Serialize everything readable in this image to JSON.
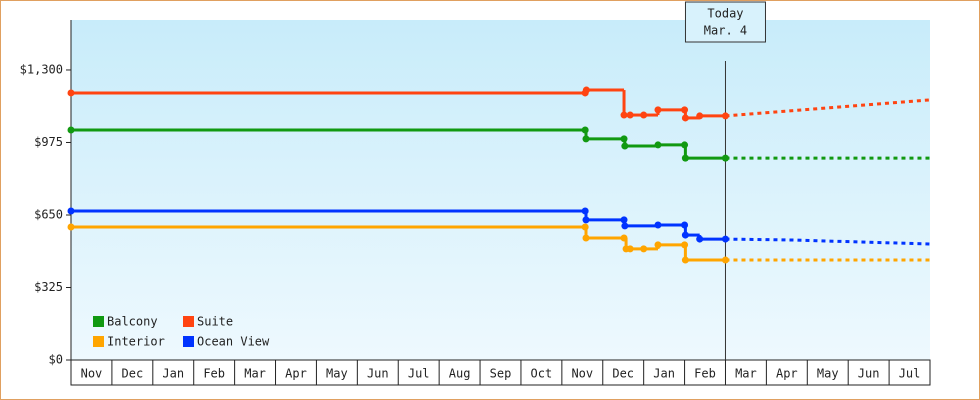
{
  "chart_data": {
    "type": "step-line",
    "x_labels": [
      "Nov",
      "Dec",
      "Jan",
      "Feb",
      "Mar",
      "Apr",
      "May",
      "Jun",
      "Jul",
      "Aug",
      "Sep",
      "Oct",
      "Nov",
      "Dec",
      "Jan",
      "Feb",
      "Mar",
      "Apr",
      "May",
      "Jun",
      "Jul"
    ],
    "xlim": [
      0,
      21
    ],
    "ylim": [
      0,
      1524
    ],
    "yticks": [
      {
        "value": 0,
        "label": "$0"
      },
      {
        "value": 325,
        "label": "$325"
      },
      {
        "value": 650,
        "label": "$650"
      },
      {
        "value": 975,
        "label": "$975"
      },
      {
        "value": 1300,
        "label": "$1,300"
      }
    ],
    "today": {
      "x": 16,
      "label": [
        "Today",
        "Mar. 4"
      ]
    },
    "series": [
      {
        "name": "Balcony",
        "color": "#119911",
        "x": [
          0,
          12.57,
          12.59,
          13.52,
          13.54,
          14.35,
          15.0,
          15.02,
          16.0
        ],
        "values": [
          1031,
          1031,
          991,
          991,
          959,
          964,
          964,
          905,
          905
        ],
        "forecast_x": [
          16,
          21
        ],
        "forecast_values": [
          905,
          905
        ]
      },
      {
        "name": "Suite",
        "color": "#ff4411",
        "x": [
          0,
          12.57,
          12.6,
          13.52,
          13.67,
          14.0,
          14.35,
          15.0,
          15.02,
          15.37,
          16.0
        ],
        "values": [
          1197,
          1197,
          1210,
          1098,
          1098,
          1098,
          1121,
          1121,
          1085,
          1094,
          1094
        ],
        "forecast_x": [
          16,
          21
        ],
        "forecast_values": [
          1094,
          1166
        ]
      },
      {
        "name": "Interior",
        "color": "#ffa500",
        "x": [
          0,
          12.57,
          12.59,
          13.52,
          13.57,
          13.67,
          14.0,
          14.35,
          15.0,
          15.02,
          16.0
        ],
        "values": [
          596,
          596,
          547,
          547,
          498,
          498,
          498,
          516,
          516,
          448,
          448
        ],
        "forecast_x": [
          16,
          21
        ],
        "forecast_values": [
          448,
          448
        ]
      },
      {
        "name": "Ocean View",
        "color": "#0033ff",
        "x": [
          0,
          12.57,
          12.59,
          13.52,
          13.54,
          14.35,
          15.0,
          15.02,
          15.37,
          16.0
        ],
        "values": [
          668,
          668,
          628,
          628,
          601,
          605,
          605,
          560,
          542,
          542
        ],
        "forecast_x": [
          16,
          17.6,
          21
        ],
        "forecast_values": [
          542,
          538,
          520
        ]
      }
    ]
  }
}
